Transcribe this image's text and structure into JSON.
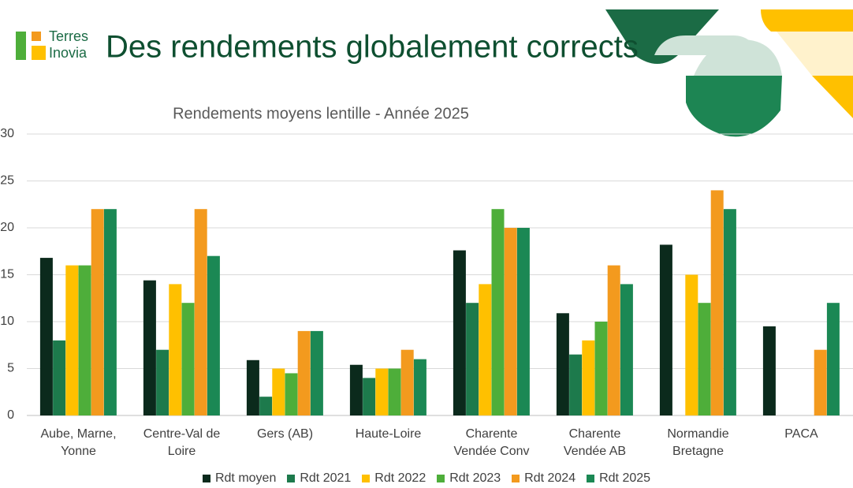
{
  "header": {
    "logo_line1": "Terres",
    "logo_line2": "Inovia",
    "title": "Des rendements globalement corrects"
  },
  "chart_data": {
    "type": "bar",
    "title": "Rendements moyens lentille - Année 2025",
    "categories": [
      "Aube, Marne, Yonne",
      "Centre-Val de Loire",
      "Gers (AB)",
      "Haute-Loire",
      "Charente Vendée Conv",
      "Charente Vendée AB",
      "Normandie Bretagne",
      "PACA"
    ],
    "series": [
      {
        "name": "Rdt moyen",
        "color": "#0b2a1c",
        "values": [
          16.8,
          14.4,
          5.9,
          5.4,
          17.6,
          10.9,
          18.2,
          9.5
        ]
      },
      {
        "name": "Rdt 2021",
        "color": "#1d7a4c",
        "values": [
          8,
          7,
          2,
          4,
          12,
          6.5,
          null,
          null
        ]
      },
      {
        "name": "Rdt 2022",
        "color": "#ffc000",
        "values": [
          16,
          14,
          5,
          5,
          14,
          8,
          15,
          null
        ]
      },
      {
        "name": "Rdt 2023",
        "color": "#4eae3a",
        "values": [
          16,
          12,
          4.5,
          5,
          22,
          10,
          12,
          null
        ]
      },
      {
        "name": "Rdt 2024",
        "color": "#f39a1e",
        "values": [
          22,
          22,
          9,
          7,
          20,
          16,
          24,
          7
        ]
      },
      {
        "name": "Rdt 2025",
        "color": "#1b8854",
        "values": [
          22,
          17,
          9,
          6,
          20,
          14,
          22,
          12
        ]
      }
    ],
    "ylim": [
      0,
      30
    ],
    "yticks": [
      0,
      5,
      10,
      15,
      20,
      25,
      30
    ],
    "grid": true,
    "legend": "bottom"
  }
}
